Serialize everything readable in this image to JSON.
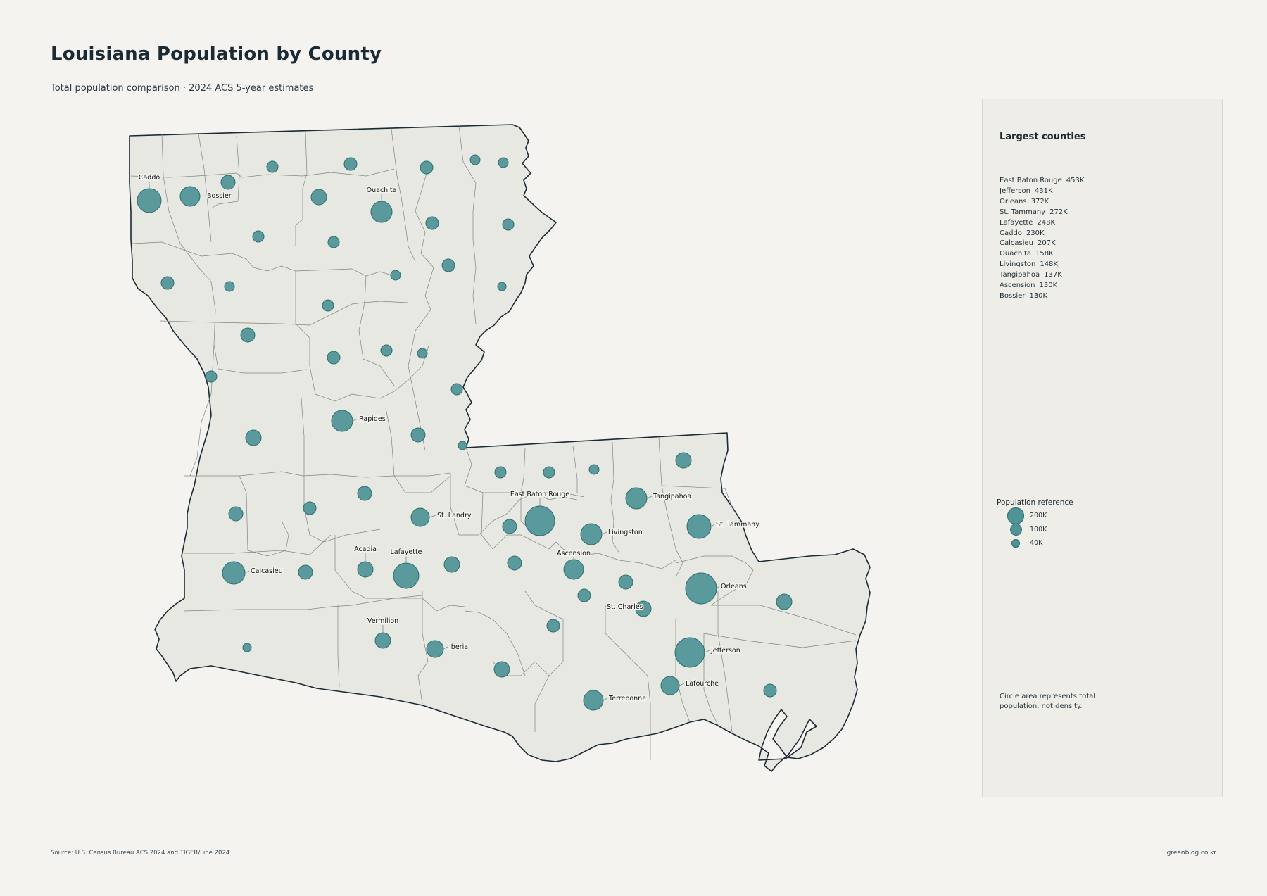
{
  "header": {
    "title": "Louisiana Population by County",
    "subtitle": "Total population comparison · 2024 ACS 5-year estimates"
  },
  "colors": {
    "background": "#f5f3ef",
    "land": "#e7e8e1",
    "bubble": "#4f9396",
    "bubble_stroke": "#2e6d71",
    "panel": "#efede8"
  },
  "map": {
    "state": "Louisiana",
    "labeled_counties": [
      {
        "name": "Caddo",
        "population": 230000
      },
      {
        "name": "Bossier",
        "population": 130000
      },
      {
        "name": "Ouachita",
        "population": 158000
      },
      {
        "name": "Rapides",
        "population": null
      },
      {
        "name": "East Baton Rouge",
        "population": 453000
      },
      {
        "name": "Tangipahoa",
        "population": 137000
      },
      {
        "name": "St. Landry",
        "population": null
      },
      {
        "name": "St. Tammany",
        "population": 272000
      },
      {
        "name": "Livingston",
        "population": 148000
      },
      {
        "name": "Acadia",
        "population": null
      },
      {
        "name": "Lafayette",
        "population": 248000
      },
      {
        "name": "Ascension",
        "population": 130000
      },
      {
        "name": "Calcasieu",
        "population": 207000
      },
      {
        "name": "Orleans",
        "population": 372000
      },
      {
        "name": "St. Charles",
        "population": null
      },
      {
        "name": "Vermilion",
        "population": null
      },
      {
        "name": "Iberia",
        "population": null
      },
      {
        "name": "Jefferson",
        "population": 431000
      },
      {
        "name": "Lafourche",
        "population": null
      },
      {
        "name": "Terrebonne",
        "population": null
      }
    ]
  },
  "panel": {
    "title": "Largest counties",
    "ranking": [
      {
        "name": "East Baton Rouge",
        "value": "453K"
      },
      {
        "name": "Jefferson",
        "value": "431K"
      },
      {
        "name": "Orleans",
        "value": "372K"
      },
      {
        "name": "St. Tammany",
        "value": "272K"
      },
      {
        "name": "Lafayette",
        "value": "248K"
      },
      {
        "name": "Caddo",
        "value": "230K"
      },
      {
        "name": "Calcasieu",
        "value": "207K"
      },
      {
        "name": "Ouachita",
        "value": "158K"
      },
      {
        "name": "Livingston",
        "value": "148K"
      },
      {
        "name": "Tangipahoa",
        "value": "137K"
      },
      {
        "name": "Ascension",
        "value": "130K"
      },
      {
        "name": "Bossier",
        "value": "130K"
      }
    ],
    "legend_title": "Population reference",
    "legend": [
      {
        "label": "200K",
        "value": 200000
      },
      {
        "label": "100K",
        "value": 100000
      },
      {
        "label": "40K",
        "value": 40000
      }
    ],
    "note": "Circle area represents total population, not density."
  },
  "footer": {
    "source": "Source: U.S. Census Bureau ACS 2024 and TIGER/Line 2024",
    "credit": "greenblog.co.kr"
  }
}
